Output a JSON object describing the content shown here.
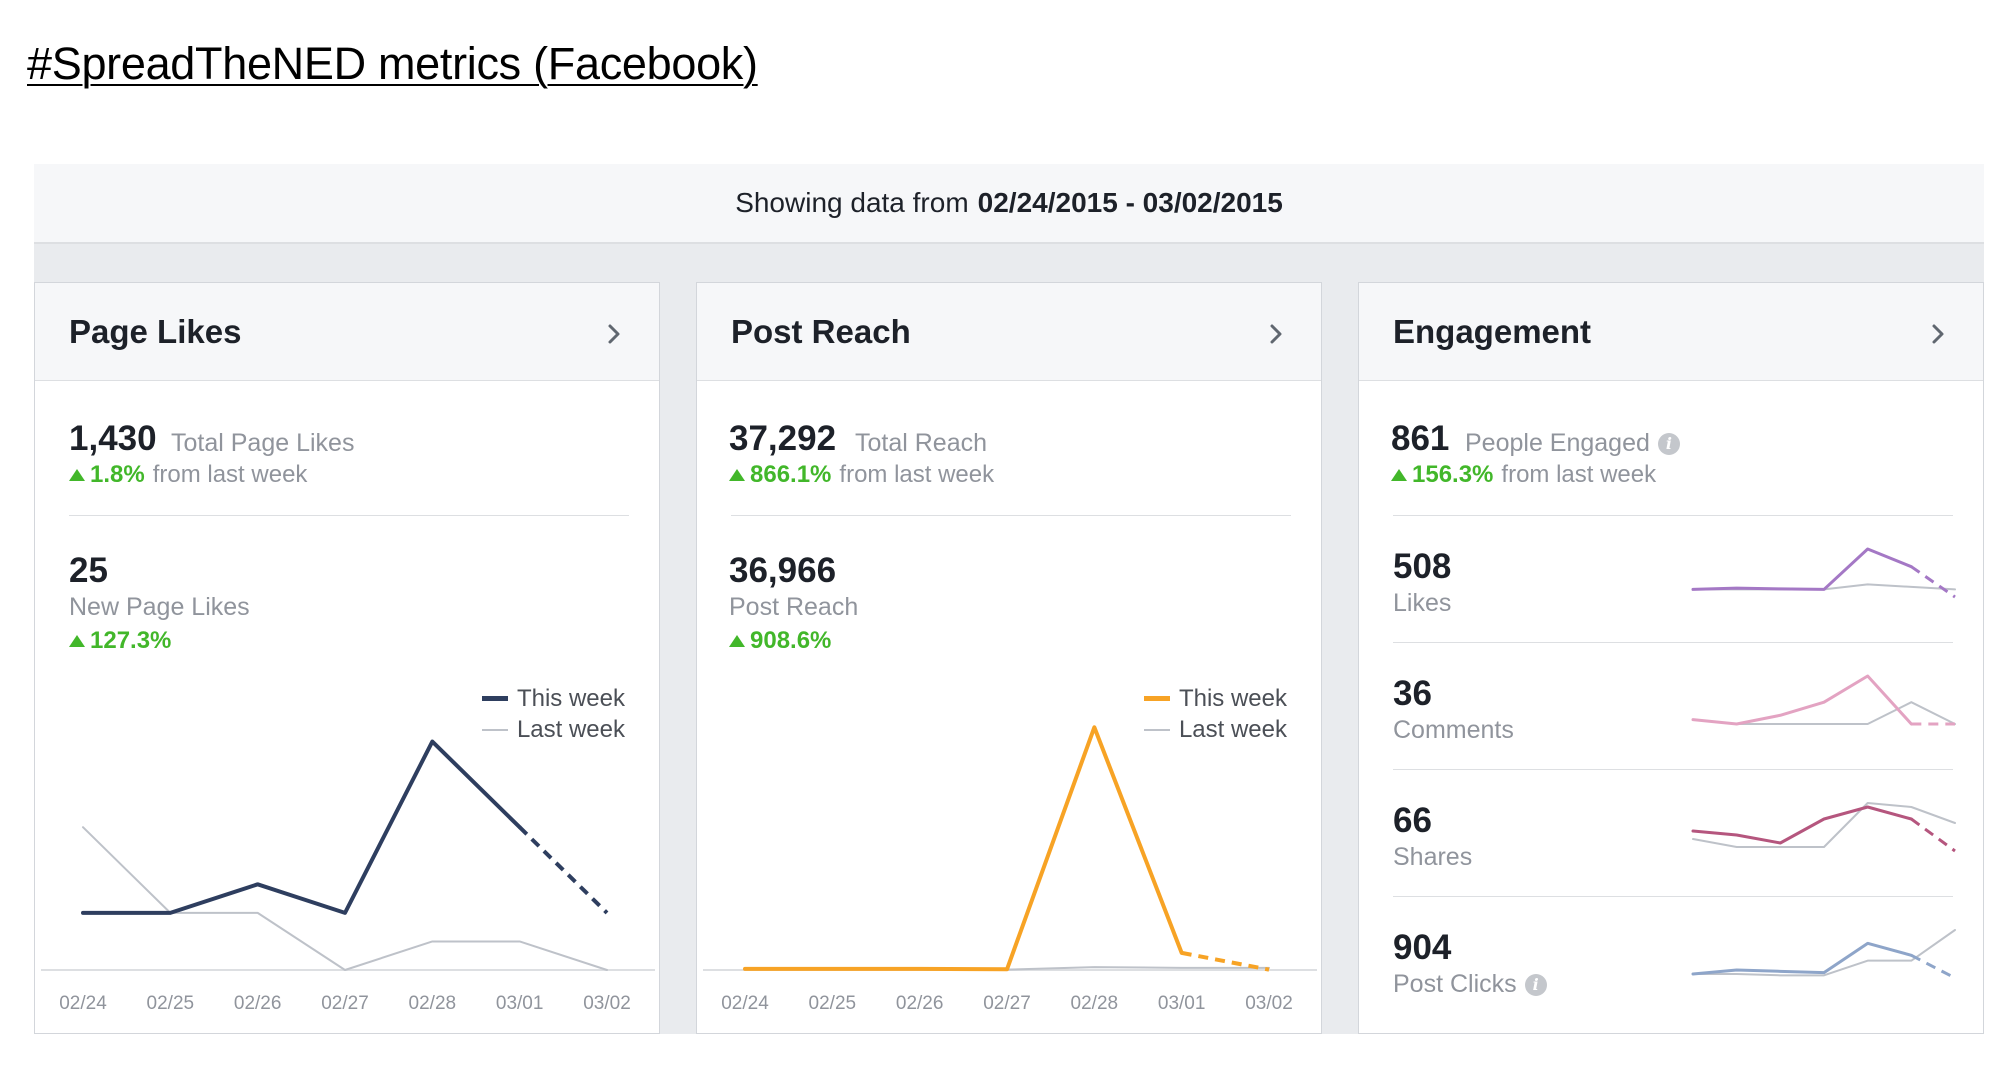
{
  "doc_title": "#SpreadTheNED metrics (Facebook)",
  "range": {
    "prefix": "Showing data from",
    "dates": "02/24/2015 - 03/02/2015"
  },
  "colors": {
    "page_likes_line": "#2e3e5f",
    "post_reach_line": "#f7a325",
    "last_week_line": "#bec2c9",
    "likes_spark": "#a478c5",
    "comments_spark": "#e3a3c2",
    "shares_spark": "#b5567e",
    "clicks_spark": "#8ea5c9",
    "positive": "#42b72a"
  },
  "cards": {
    "page_likes": {
      "title": "Page Likes",
      "total_value": "1,430",
      "total_label": "Total Page Likes",
      "total_delta": "1.8%",
      "total_delta_suffix": "from last week",
      "sub_value": "25",
      "sub_label": "New Page Likes",
      "sub_delta": "127.3%",
      "legend_this": "This week",
      "legend_last": "Last week"
    },
    "post_reach": {
      "title": "Post Reach",
      "total_value": "37,292",
      "total_label": "Total Reach",
      "total_delta": "866.1%",
      "total_delta_suffix": "from last week",
      "sub_value": "36,966",
      "sub_label": "Post Reach",
      "sub_delta": "908.6%",
      "legend_this": "This week",
      "legend_last": "Last week"
    },
    "engagement": {
      "title": "Engagement",
      "total_value": "861",
      "total_label": "People Engaged",
      "total_delta": "156.3%",
      "total_delta_suffix": "from last week",
      "rows": [
        {
          "value": "508",
          "label": "Likes"
        },
        {
          "value": "36",
          "label": "Comments"
        },
        {
          "value": "66",
          "label": "Shares"
        },
        {
          "value": "904",
          "label": "Post Clicks"
        }
      ]
    }
  },
  "chart_data": [
    {
      "type": "line",
      "x": [
        "02/24",
        "02/25",
        "02/26",
        "02/27",
        "02/28",
        "03/01",
        "03/02"
      ],
      "series": [
        {
          "name": "This week",
          "values": [
            1,
            1,
            2,
            1,
            7,
            4,
            1
          ]
        },
        {
          "name": "Last week",
          "values": [
            4,
            1,
            1,
            -1,
            0,
            0,
            -1
          ]
        }
      ],
      "ylim": [
        -1,
        8
      ]
    },
    {
      "type": "line",
      "x": [
        "02/24",
        "02/25",
        "02/26",
        "02/27",
        "02/28",
        "03/01",
        "03/02"
      ],
      "series": [
        {
          "name": "This week",
          "values": [
            150,
            150,
            150,
            100,
            34000,
            2400,
            50
          ]
        },
        {
          "name": "Last week",
          "values": [
            50,
            50,
            80,
            50,
            400,
            300,
            300
          ]
        }
      ],
      "ylim": [
        0,
        36000
      ]
    },
    {
      "type": "line",
      "title": "Likes",
      "series": [
        {
          "name": "This week",
          "values": [
            40,
            45,
            42,
            40,
            200,
            130,
            10
          ]
        },
        {
          "name": "Last week",
          "values": [
            40,
            40,
            40,
            40,
            60,
            50,
            40
          ]
        }
      ]
    },
    {
      "type": "line",
      "title": "Comments",
      "series": [
        {
          "name": "This week",
          "values": [
            2,
            1,
            3,
            6,
            12,
            1,
            1
          ]
        },
        {
          "name": "Last week",
          "values": [
            2,
            1,
            1,
            1,
            1,
            6,
            1
          ]
        }
      ]
    },
    {
      "type": "line",
      "title": "Shares",
      "series": [
        {
          "name": "This week",
          "values": [
            8,
            7,
            5,
            11,
            14,
            11,
            3
          ]
        },
        {
          "name": "Last week",
          "values": [
            6,
            4,
            4,
            4,
            15,
            14,
            10
          ]
        }
      ]
    },
    {
      "type": "line",
      "title": "Post Clicks",
      "series": [
        {
          "name": "This week",
          "values": [
            50,
            80,
            70,
            60,
            280,
            190,
            20
          ]
        },
        {
          "name": "Last week",
          "values": [
            50,
            50,
            40,
            40,
            150,
            150,
            380
          ]
        }
      ]
    }
  ]
}
